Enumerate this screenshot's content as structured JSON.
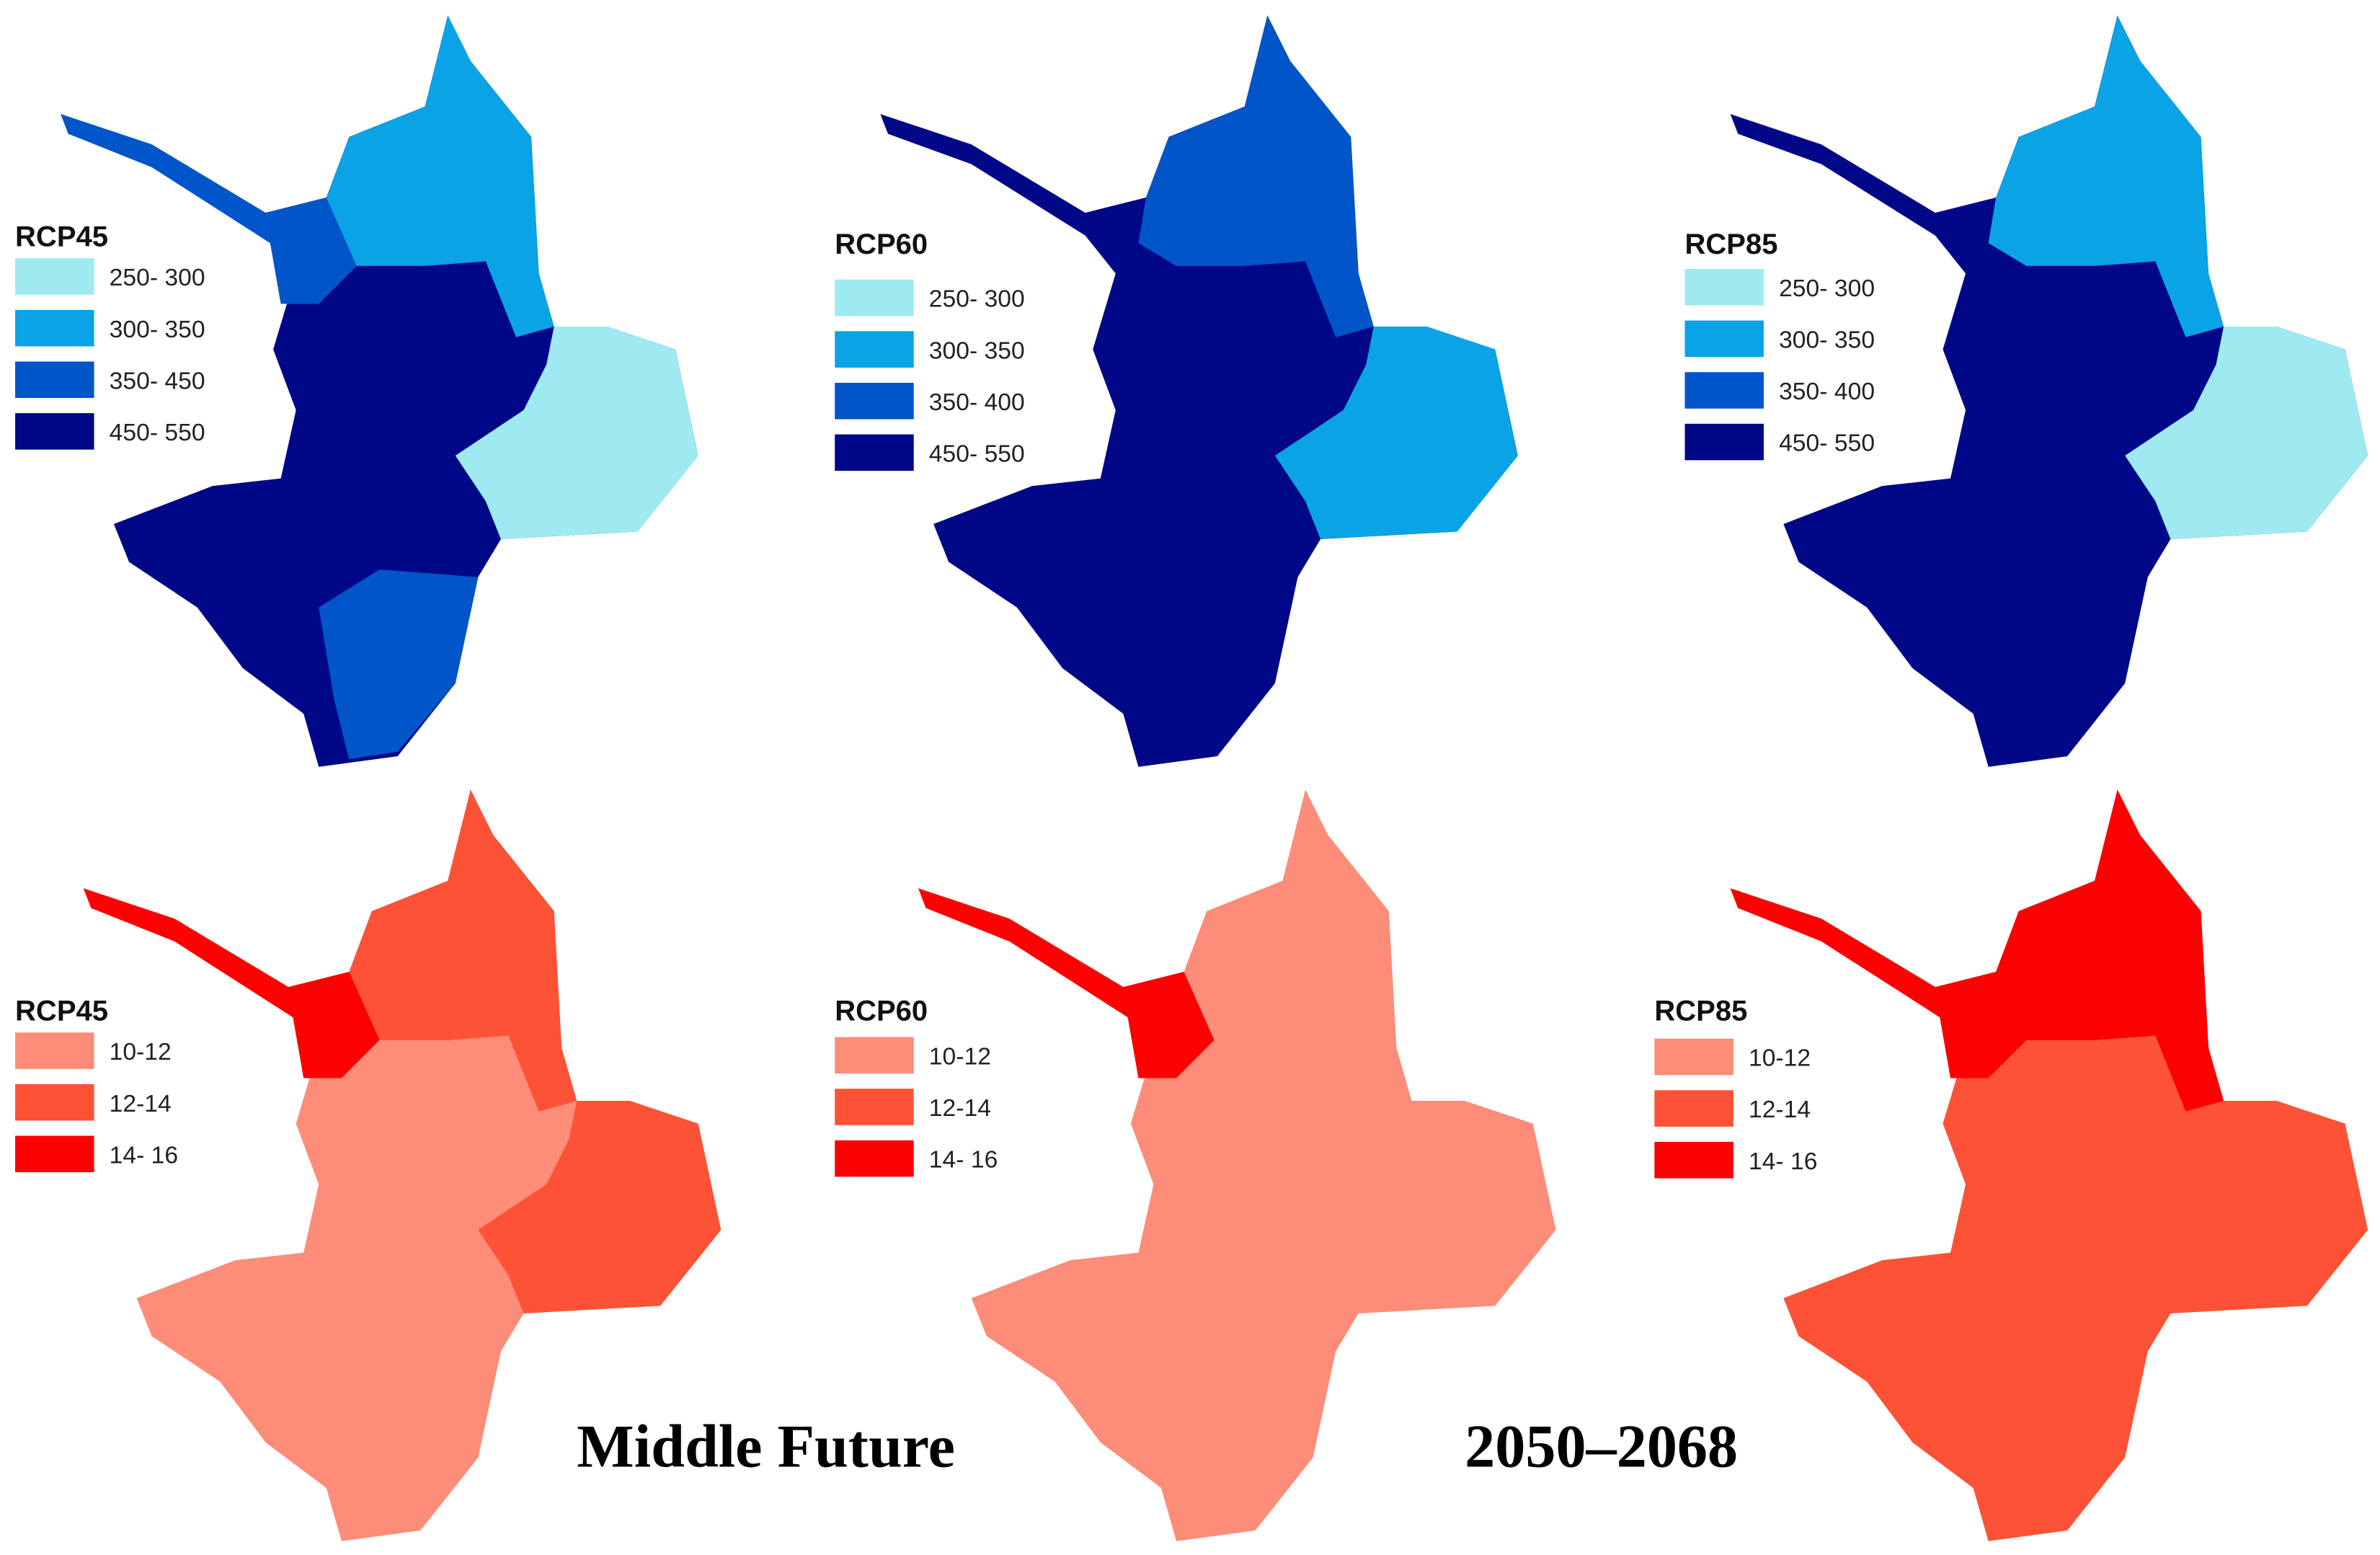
{
  "panels": [
    {
      "title": "RCP45",
      "items": [
        {
          "label": "250- 300",
          "color": "#9eeaf0"
        },
        {
          "label": "300- 350",
          "color": "#0aa3e6"
        },
        {
          "label": "350- 450",
          "color": "#0055c8"
        },
        {
          "label": "450- 550",
          "color": "#010887"
        }
      ]
    },
    {
      "title": "RCP60",
      "items": [
        {
          "label": "250- 300",
          "color": "#9eeaf0"
        },
        {
          "label": "300- 350",
          "color": "#0aa3e6"
        },
        {
          "label": "350- 400",
          "color": "#0055c8"
        },
        {
          "label": "450- 550",
          "color": "#010887"
        }
      ]
    },
    {
      "title": "RCP85",
      "items": [
        {
          "label": "250- 300",
          "color": "#9eeaf0"
        },
        {
          "label": "300- 350",
          "color": "#0aa3e6"
        },
        {
          "label": "350- 400",
          "color": "#0055c8"
        },
        {
          "label": "450- 550",
          "color": "#010887"
        }
      ]
    },
    {
      "title": "RCP45",
      "items": [
        {
          "label": "10-12",
          "color": "#fd8c78"
        },
        {
          "label": "12-14",
          "color": "#fd5236"
        },
        {
          "label": "14- 16",
          "color": "#fd0000"
        }
      ]
    },
    {
      "title": "RCP60",
      "items": [
        {
          "label": "10-12",
          "color": "#fd8c78"
        },
        {
          "label": "12-14",
          "color": "#fd5236"
        },
        {
          "label": "14- 16",
          "color": "#fd0000"
        }
      ]
    },
    {
      "title": "RCP85",
      "items": [
        {
          "label": "10-12",
          "color": "#fd8c78"
        },
        {
          "label": "12-14",
          "color": "#fd5236"
        },
        {
          "label": "14- 16",
          "color": "#fd0000"
        }
      ]
    }
  ],
  "caption": {
    "period_name": "Middle Future",
    "years": "2050–2068"
  }
}
